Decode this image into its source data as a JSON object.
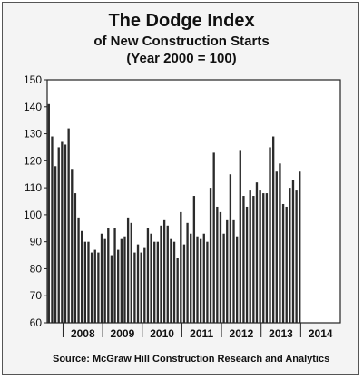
{
  "chart_data": {
    "type": "bar",
    "title": "The Dodge Index",
    "subtitle": "of New Construction Starts",
    "subtitle2": "(Year 2000 = 100)",
    "source": "Source:  McGraw Hill Construction Research and Analytics",
    "ylim": [
      60,
      150
    ],
    "yticks": [
      60,
      70,
      80,
      90,
      100,
      110,
      120,
      130,
      140,
      150
    ],
    "year_labels": [
      "2008",
      "2009",
      "2010",
      "2011",
      "2012",
      "2013",
      "2014"
    ],
    "years": [
      2008,
      2009,
      2010,
      2011,
      2012,
      2013,
      2014
    ],
    "start_year": 2007.6,
    "months_per_year": 12,
    "values": [
      141,
      129,
      118,
      125,
      127,
      126,
      132,
      117,
      108,
      99,
      94,
      90,
      90,
      86,
      87,
      86,
      93,
      91,
      95,
      85,
      95,
      87,
      91,
      92,
      99,
      97,
      86,
      89,
      86,
      88,
      95,
      93,
      90,
      90,
      96,
      98,
      96,
      91,
      90,
      84,
      101,
      89,
      97,
      93,
      107,
      92,
      91,
      93,
      90,
      110,
      123,
      103,
      101,
      93,
      98,
      115,
      98,
      92,
      124,
      107,
      103,
      109,
      107,
      112,
      109,
      108,
      108,
      125,
      129,
      116,
      119,
      104,
      103,
      110,
      113,
      109,
      116
    ],
    "bar_color": "#2b2b2b",
    "grid": false
  }
}
